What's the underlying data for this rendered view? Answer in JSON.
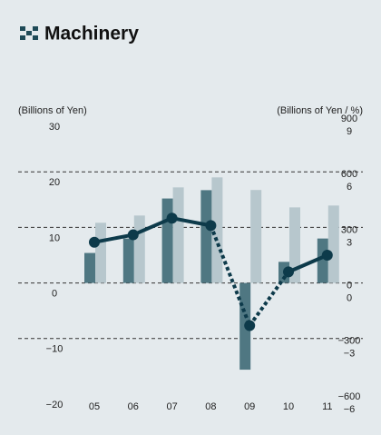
{
  "chart_data": {
    "type": "bar",
    "title": "Machinery",
    "y_label": "(Billions of Yen)",
    "y2_label": "(Billions of Yen / %)",
    "categories": [
      "05",
      "06",
      "07",
      "08",
      "09",
      "10",
      "11"
    ],
    "ylim": [
      -20,
      30
    ],
    "yticks": [
      30,
      20,
      10,
      0,
      {
        "value": -10,
        "label": "−10"
      },
      {
        "value": -20,
        "label": "−20"
      }
    ],
    "y2lim": [
      -600,
      900
    ],
    "y2ticks": [
      900,
      600,
      300,
      0,
      {
        "value": -300,
        "label": "−300"
      },
      {
        "value": -600,
        "label": "−600"
      }
    ],
    "y3lim": [
      -6,
      9
    ],
    "y3ticks": [
      9,
      6,
      3,
      0,
      {
        "value": -3,
        "label": "−3"
      },
      {
        "value": -6,
        "label": "−6"
      }
    ],
    "grid": true,
    "series": [
      {
        "type": "bar",
        "color": "#4f7782",
        "values": [
          5.4,
          8.0,
          15.2,
          16.7,
          -15.6,
          3.8,
          8.0
        ]
      },
      {
        "type": "bar",
        "color": "#b7c7cd",
        "axis": "y2",
        "values": [
          325,
          364,
          516,
          570,
          502,
          408,
          418
        ]
      },
      {
        "type": "line",
        "color": "#0d3a4a",
        "axis": "y3",
        "values": [
          2.2,
          2.6,
          3.5,
          3.1,
          -2.3,
          0.6,
          1.5
        ],
        "dashed": [
          false,
          false,
          false,
          true,
          true,
          false
        ]
      }
    ]
  }
}
